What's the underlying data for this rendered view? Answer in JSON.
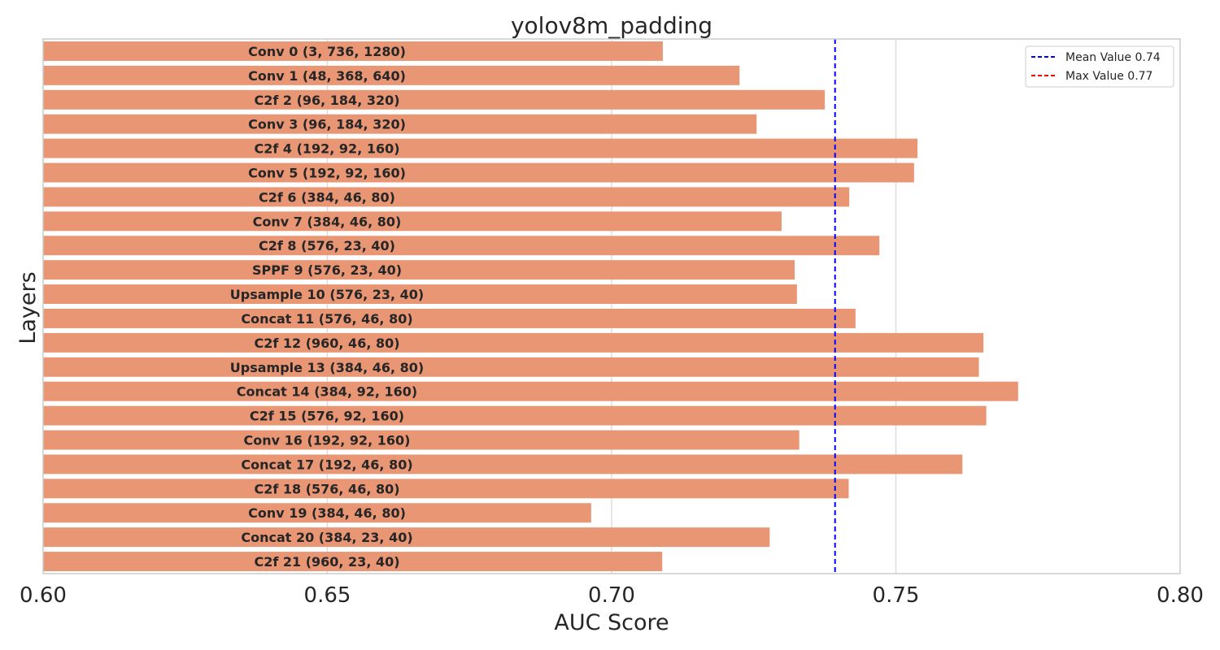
{
  "chart_data": {
    "type": "bar",
    "orientation": "horizontal",
    "title": "yolov8m_padding",
    "xlabel": "AUC Score",
    "ylabel": "Layers",
    "xlim": [
      0.6,
      0.8
    ],
    "xticks": [
      0.6,
      0.65,
      0.7,
      0.75,
      0.8
    ],
    "xtick_labels": [
      "0.60",
      "0.65",
      "0.70",
      "0.75",
      "0.80"
    ],
    "grid": "vertical",
    "bar_color": "#E99675",
    "categories": [
      "Conv 0 (3, 736, 1280)",
      "Conv 1 (48, 368, 640)",
      "C2f 2 (96, 184, 320)",
      "Conv 3 (96, 184, 320)",
      "C2f 4 (192, 92, 160)",
      "Conv 5 (192, 92, 160)",
      "C2f 6 (384, 46, 80)",
      "Conv 7 (384, 46, 80)",
      "C2f 8 (576, 23, 40)",
      "SPPF 9 (576, 23, 40)",
      "Upsample 10 (576, 23, 40)",
      "Concat 11 (576, 46, 80)",
      "C2f 12 (960, 46, 80)",
      "Upsample 13 (384, 46, 80)",
      "Concat 14 (384, 92, 160)",
      "C2f 15 (576, 92, 160)",
      "Conv 16 (192, 92, 160)",
      "Concat 17 (192, 46, 80)",
      "C2f 18 (576, 46, 80)",
      "Conv 19 (384, 46, 80)",
      "Concat 20 (384, 23, 40)",
      "C2f 21 (960, 23, 40)"
    ],
    "values": [
      0.709,
      0.7225,
      0.7375,
      0.7255,
      0.7538,
      0.7532,
      0.7418,
      0.7299,
      0.7471,
      0.7322,
      0.7326,
      0.7429,
      0.7654,
      0.7646,
      0.7715,
      0.7659,
      0.733,
      0.7617,
      0.7417,
      0.6964,
      0.7278,
      0.7089
    ],
    "reference_lines": [
      {
        "name": "Mean Value 0.74",
        "value": 0.7393,
        "color": "#0000ff",
        "style": "dashed"
      },
      {
        "name": "Max Value 0.77",
        "value": 0.7715,
        "color": "#ff0000",
        "style": "dashed"
      }
    ],
    "legend": "top-right"
  }
}
